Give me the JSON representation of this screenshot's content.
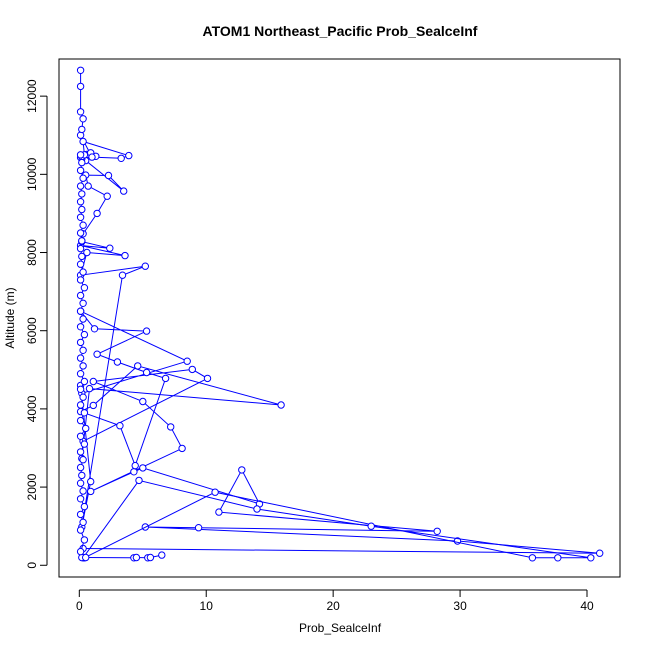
{
  "chart_data": {
    "type": "line",
    "title": "ATOM1 Northeast_Pacific Prob_SealceInf",
    "xlabel": "Prob_SealceInf",
    "ylabel": "Altitude (m)",
    "xlim": [
      -1.6,
      42.6
    ],
    "ylim": [
      -300,
      12950
    ],
    "xticks": [
      0,
      10,
      20,
      30,
      40
    ],
    "yticks": [
      0,
      2000,
      4000,
      6000,
      8000,
      10000,
      12000
    ],
    "grid": false,
    "legend": "none",
    "series": [
      {
        "color": "#0000ff",
        "marker": "open-circle",
        "x": [
          0.3,
          41.0,
          29.8,
          5.2,
          9.4,
          28.2,
          11.0,
          12.8,
          14.2,
          5.0,
          4.3,
          0.9,
          8.1,
          7.2,
          5.0,
          1.1,
          8.9,
          10.1,
          0.3,
          0.2,
          0.8,
          15.9,
          4.6,
          1.1,
          0.1,
          3.2,
          4.4,
          6.8,
          5.3,
          3.0,
          1.4,
          5.3,
          1.2,
          0.1,
          8.5,
          0.2,
          0.1,
          0.9,
          0.2,
          3.4,
          5.2,
          0.1,
          0.6,
          3.6,
          0.1,
          2.4,
          0.2,
          0.3,
          1.4,
          2.2,
          0.7,
          0.5,
          2.3,
          3.5,
          0.5,
          0.2,
          1.3,
          0.2,
          0.6,
          0.1,
          0.9,
          0.2,
          0.4,
          0.3,
          3.9,
          3.3,
          1.0,
          0.1,
          0.2,
          0.3,
          0.1,
          0.1,
          0.1
        ],
        "y": [
          430,
          310,
          620,
          980,
          960,
          870,
          1360,
          2440,
          1570,
          2490,
          2390,
          1890,
          2990,
          3540,
          4190,
          4700,
          5010,
          4780,
          3170,
          2730,
          4520,
          4100,
          5100,
          4090,
          3930,
          3570,
          2550,
          4780,
          4930,
          5200,
          5400,
          5990,
          6050,
          6500,
          5220,
          4400,
          4600,
          2140,
          980,
          7420,
          7650,
          7420,
          8000,
          7920,
          8180,
          8110,
          8280,
          8480,
          9000,
          9440,
          9700,
          9980,
          9970,
          9570,
          10350,
          10400,
          10460,
          10470,
          10510,
          10430,
          10550,
          10450,
          10500,
          10840,
          10480,
          10410,
          10440,
          11000,
          11150,
          11420,
          11600,
          12250,
          12660
        ]
      },
      {
        "color": "#0000ff",
        "marker": "open-circle",
        "x": [
          0.4,
          10.7,
          35.7,
          37.7,
          40.3,
          23.0,
          14.0,
          4.7,
          0.3
        ],
        "y": [
          190,
          1870,
          190,
          190,
          190,
          1000,
          1440,
          2170,
          190
        ]
      },
      {
        "color": "#0000ff",
        "marker": "open-circle",
        "x": [
          0.2,
          0.5,
          4.3,
          4.5,
          5.4,
          5.6,
          6.5
        ],
        "y": [
          200,
          200,
          190,
          200,
          190,
          200,
          260
        ]
      },
      {
        "color": "#0000ff",
        "marker": "open-circle",
        "x": [
          0.1,
          0.4,
          0.1,
          0.3,
          0.1,
          0.4,
          0.1,
          0.3,
          0.1,
          0.2,
          0.1,
          0.3,
          0.1,
          0.4,
          0.1,
          0.5,
          0.1,
          0.4,
          0.1,
          0.3,
          0.1,
          0.4,
          0.1,
          0.3,
          0.1,
          0.3,
          0.1,
          0.4,
          0.1,
          0.3,
          0.1,
          0.3,
          0.1,
          0.4,
          0.1,
          0.3,
          0.1,
          0.2,
          0.1,
          0.2,
          0.1,
          0.3,
          0.1,
          0.2,
          0.1,
          0.2,
          0.1,
          0.3,
          0.1,
          0.2,
          0.1
        ],
        "y": [
          350,
          650,
          900,
          1100,
          1300,
          1500,
          1700,
          1900,
          2100,
          2300,
          2500,
          2700,
          2900,
          3100,
          3300,
          3500,
          3700,
          3900,
          4100,
          4300,
          4500,
          4700,
          4900,
          5100,
          5300,
          5500,
          5700,
          5900,
          6100,
          6300,
          6500,
          6700,
          6900,
          7100,
          7300,
          7500,
          7700,
          7900,
          8100,
          8300,
          8500,
          8700,
          8900,
          9100,
          9300,
          9500,
          9700,
          9900,
          10100,
          10300,
          10500
        ]
      }
    ]
  }
}
